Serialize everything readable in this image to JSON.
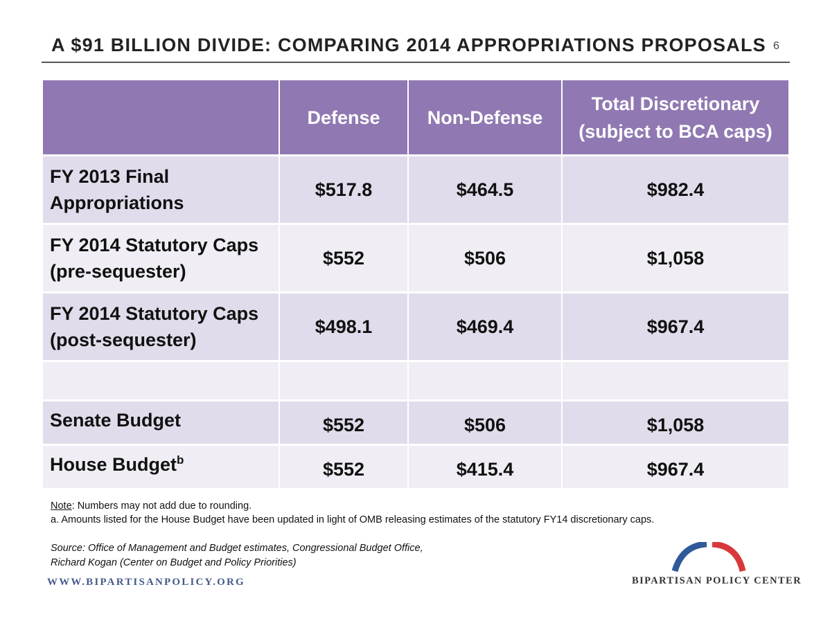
{
  "header": {
    "title": "A $91 BILLION DIVIDE: COMPARING 2014 APPROPRIATIONS PROPOSALS",
    "page_number": "6"
  },
  "table": {
    "columns": [
      "",
      "Defense",
      "Non-Defense",
      "Total Discretionary (subject to BCA caps)"
    ],
    "column_lines": {
      "total_line1": "Total Discretionary",
      "total_line2": "(subject to BCA caps)"
    },
    "rows": [
      {
        "label_line1": "FY 2013 Final",
        "label_line2": "Appropriations",
        "defense": "$517.8",
        "non_defense": "$464.5",
        "total": "$982.4"
      },
      {
        "label_line1": "FY 2014 Statutory Caps",
        "label_line2": "(pre-sequester)",
        "defense": "$552",
        "non_defense": "$506",
        "total": "$1,058"
      },
      {
        "label_line1": "FY 2014 Statutory Caps",
        "label_line2": "(post-sequester)",
        "defense": "$498.1",
        "non_defense": "$469.4",
        "total": "$967.4"
      },
      {
        "label_line1": "",
        "label_line2": "",
        "defense": "",
        "non_defense": "",
        "total": ""
      },
      {
        "label_line1": "Senate Budget",
        "label_line2": "",
        "defense": "$552",
        "non_defense": "$506",
        "total": "$1,058"
      },
      {
        "label_line1": "House Budget",
        "label_sup": "b",
        "label_line2": "",
        "defense": "$552",
        "non_defense": "$415.4",
        "total": "$967.4"
      }
    ]
  },
  "notes": {
    "note_key": "Note",
    "note_text": ": Numbers may not add due to rounding.",
    "footnote_a": "a. Amounts listed for the House Budget have been updated in light of OMB releasing estimates of the statutory FY14 discretionary caps."
  },
  "source": {
    "line1": "Source: Office of Management and Budget estimates, Congressional Budget Office,",
    "line2": "Richard Kogan (Center on Budget and Policy Priorities)"
  },
  "footer": {
    "url": "WWW.BIPARTISANPOLICY.ORG",
    "logo_text": "BIPARTISAN POLICY CENTER"
  },
  "colors": {
    "header_purple": "#9079b2",
    "row_dark": "#e1dceb",
    "row_light": "#f0eef4",
    "logo_blue": "#2f5a9a",
    "logo_red": "#d8383c"
  }
}
